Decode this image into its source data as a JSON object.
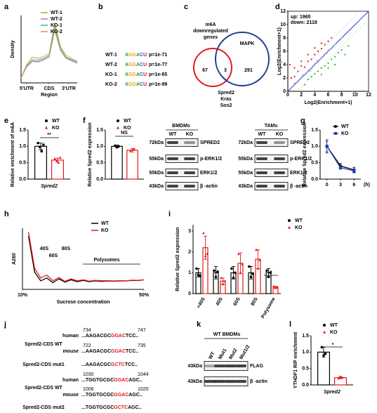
{
  "panel_labels": [
    "a",
    "b",
    "c",
    "d",
    "e",
    "f",
    "g",
    "h",
    "i",
    "j",
    "k",
    "l"
  ],
  "motifs": [
    {
      "label": "WT-1",
      "motif": "AGGACU",
      "p": "p=1e-71"
    },
    {
      "label": "WT-2",
      "motif": "AGGACU",
      "p": "p=1e-77"
    },
    {
      "label": "KO-1",
      "motif": "AGGACU",
      "p": "p=1e-65"
    },
    {
      "label": "KO-2",
      "motif": "AGGACU",
      "p": "p=1e-99"
    }
  ],
  "venn": {
    "left_title": [
      "m6A",
      "downregulated",
      "genes"
    ],
    "right_title": "MAPK",
    "left_only": "67",
    "overlap": "3",
    "right_only": "291",
    "overlap_genes": [
      "Spred2",
      "Kras",
      "Sos2"
    ]
  },
  "blots": [
    {
      "title": "BMDMs",
      "lanes": [
        "WT",
        "KO"
      ],
      "markers": [
        "72kDa",
        "55kDa",
        "55kDa",
        "43kDa"
      ],
      "proteins": [
        "SPRED2",
        "p-ERK1/2",
        "ERK1/2",
        "β -actin"
      ]
    },
    {
      "title": "TAMs",
      "lanes": [
        "WT",
        "KO"
      ],
      "markers": [
        "72kDa",
        "55kDa",
        "55kDa",
        "43kDa"
      ],
      "proteins": [
        "SPRED2",
        "p-ERK1/2",
        "ERK1/2",
        "β -actin"
      ]
    },
    {
      "title": "WT BMDMs",
      "lanes": [
        "WT",
        "Mut1",
        "Mut2",
        "Mut1/2"
      ],
      "markers": [
        "43kDa",
        "43kDa"
      ],
      "proteins": [
        "FLAG",
        "β -actin"
      ]
    }
  ],
  "sequences": [
    {
      "species": "human",
      "pos": [
        "734",
        "747"
      ],
      "seq": [
        "...AAGACGC",
        "GGAC",
        "TCC.."
      ]
    },
    {
      "name": "Spred2-CDS WT",
      "species": "mouse",
      "pos": [
        "722",
        "735"
      ],
      "seq": [
        "...AAGACGC",
        "GGAC",
        "TCC.."
      ]
    },
    {
      "name": "Spred2-CDS mut1",
      "seq": [
        "...AAGACGC",
        "GCTC",
        "TCC.."
      ]
    },
    {
      "species": "human",
      "pos": [
        "1030",
        "1044"
      ],
      "seq": [
        "...TGGTGCGC",
        "GGAC",
        "AGC.."
      ]
    },
    {
      "name": "Spred2-CDS WT",
      "species": "mouse",
      "pos": [
        "1006",
        "1020"
      ],
      "seq": [
        "...TGGTGCGC",
        "GGAC",
        "AGC.."
      ]
    },
    {
      "name": "Spred2-CDS mut2",
      "seq": [
        "...TGGTGCGC",
        "GCTC",
        "AGC.."
      ]
    }
  ],
  "chart_data": [
    {
      "type": "line",
      "ylabel": "Density",
      "xlabel": "Region",
      "x": [
        0,
        1,
        2,
        3,
        4,
        5,
        6,
        7,
        8,
        9,
        10
      ],
      "xlim": [
        0,
        10
      ],
      "xticks": [
        {
          "value": 1,
          "label": "5'UTR"
        },
        {
          "value": 5,
          "label": "CDS"
        },
        {
          "value": 8.5,
          "label": "3'UTR"
        }
      ],
      "ylim": [
        0,
        1.1
      ],
      "series": [
        {
          "name": "WT-1",
          "color": "#7cc242",
          "values": [
            0.08,
            0.3,
            0.42,
            0.4,
            0.43,
            0.48,
            0.98,
            0.6,
            0.45,
            0.4,
            0.36
          ]
        },
        {
          "name": "WT-2",
          "color": "#b46fd6",
          "values": [
            0.08,
            0.28,
            0.38,
            0.37,
            0.4,
            0.45,
            0.92,
            0.57,
            0.42,
            0.38,
            0.34
          ]
        },
        {
          "name": "KO-1",
          "color": "#2fb7a7",
          "values": [
            0.08,
            0.26,
            0.35,
            0.34,
            0.37,
            0.42,
            0.86,
            0.53,
            0.4,
            0.36,
            0.32
          ]
        },
        {
          "name": "KO-2",
          "color": "#f08c3a",
          "values": [
            0.08,
            0.27,
            0.36,
            0.35,
            0.39,
            0.44,
            0.9,
            0.55,
            0.41,
            0.37,
            0.33
          ]
        }
      ]
    },
    {
      "type": "scatter",
      "ylabel": "Log2(Enrichment+1)",
      "xlabel": "Log2(Enrichment+1)",
      "xlim": [
        0,
        12
      ],
      "ylim": [
        0,
        12
      ],
      "xticks": [
        0,
        2,
        4,
        6,
        8,
        10,
        12
      ],
      "yticks": [
        0,
        2,
        4,
        6,
        8,
        10,
        12
      ],
      "annotations": [
        {
          "text": "up: 1965",
          "color": "#e31a1c"
        },
        {
          "text": "down: 2118",
          "color": "#33b433"
        }
      ],
      "series": [
        {
          "color": "#aaaaaa",
          "x": [
            1,
            1.5,
            2,
            2.5,
            3,
            3.5,
            4,
            4.5,
            5,
            5.5,
            6,
            6.5,
            7,
            8,
            2.2,
            3.3,
            4.4
          ],
          "y": [
            1.2,
            1.4,
            2.1,
            2.4,
            3.1,
            3.4,
            4.1,
            4.4,
            5,
            5.6,
            6.1,
            6.4,
            7,
            8,
            2.5,
            3,
            4.6
          ]
        },
        {
          "color": "#e31a1c",
          "x": [
            0.5,
            1,
            1.5,
            2,
            2.5,
            3,
            3.5,
            4,
            4.5,
            5,
            5.5,
            6,
            6.5,
            3,
            2,
            1,
            0.3,
            4,
            5
          ],
          "y": [
            2,
            3.5,
            3,
            3.8,
            3.6,
            4.5,
            4.8,
            5.5,
            6,
            6.4,
            7,
            7.5,
            8,
            5.5,
            4.5,
            2.2,
            4,
            6.5,
            7.2
          ]
        },
        {
          "color": "#33b433",
          "x": [
            2.5,
            3,
            3.5,
            4,
            4.5,
            5,
            5.5,
            6,
            6.5,
            7,
            7.5,
            8,
            5,
            6,
            7,
            8.5,
            9
          ],
          "y": [
            1,
            1.8,
            2.2,
            2.6,
            3,
            3.5,
            3.8,
            4.2,
            4.8,
            5.2,
            5.8,
            6.2,
            2.5,
            3.5,
            4,
            5.5,
            6.8
          ]
        }
      ]
    },
    {
      "type": "bar",
      "ylabel": "Relative enrichment of m6A",
      "categories": [
        "Spred2"
      ],
      "ylim": [
        0,
        1.5
      ],
      "yticks": [
        {
          "value": 0,
          "label": "0.0"
        },
        {
          "value": 0.5,
          "label": "0.5"
        },
        {
          "value": 1,
          "label": "1.0"
        },
        {
          "value": 1.5,
          "label": "1.5"
        }
      ],
      "annotations": [
        "**"
      ],
      "series": [
        {
          "name": "WT",
          "color": "#000000",
          "marker": "circle",
          "values": [
            1.0
          ],
          "errors": [
            0.1
          ],
          "points": [
            [
              1.1,
              0.98,
              0.85,
              1.05
            ]
          ]
        },
        {
          "name": "KO",
          "color": "#e31a1c",
          "marker": "triangle",
          "values": [
            0.58
          ],
          "errors": [
            0.06
          ],
          "points": [
            [
              0.62,
              0.55,
              0.5,
              0.65
            ]
          ]
        }
      ]
    },
    {
      "type": "bar",
      "ylabel": "Relative Spred2 expression",
      "ylim": [
        0,
        1.5
      ],
      "yticks": [
        {
          "value": 0,
          "label": "0.0"
        },
        {
          "value": 0.5,
          "label": "0.5"
        },
        {
          "value": 1,
          "label": "1.0"
        },
        {
          "value": 1.5,
          "label": "1.5"
        }
      ],
      "annotations": [
        "NS"
      ],
      "series": [
        {
          "name": "WT",
          "color": "#000000",
          "marker": "circle",
          "values": [
            1.0
          ],
          "errors": [
            0.04
          ],
          "points": [
            [
              1.02,
              0.97,
              1.0
            ]
          ]
        },
        {
          "name": "KO",
          "color": "#e31a1c",
          "marker": "triangle",
          "values": [
            0.88
          ],
          "errors": [
            0.05
          ],
          "points": [
            [
              0.85,
              0.9,
              0.92
            ]
          ]
        }
      ]
    },
    {
      "type": "line",
      "ylabel": "Relative Spred2 expression",
      "xlabel": "(h)",
      "x": [
        0,
        3,
        6
      ],
      "xlim": [
        -1.5,
        7.5
      ],
      "xticks": [
        0,
        3,
        6
      ],
      "ylim": [
        0,
        1.5
      ],
      "yticks": [
        {
          "value": 0,
          "label": "0.0"
        },
        {
          "value": 0.5,
          "label": "0.5"
        },
        {
          "value": 1,
          "label": "1.0"
        },
        {
          "value": 1.5,
          "label": "1.5"
        }
      ],
      "series": [
        {
          "name": "WT",
          "color": "#000000",
          "marker": "circle",
          "values": [
            1.0,
            0.4,
            0.28
          ],
          "errors": [
            0.2,
            0.08,
            0.08
          ]
        },
        {
          "name": "KO",
          "color": "#1f3fbf",
          "marker": "square",
          "values": [
            1.0,
            0.35,
            0.25
          ],
          "errors": [
            0.15,
            0.05,
            0.06
          ]
        }
      ]
    },
    {
      "type": "line",
      "ylabel": "A260",
      "xlabel": "Sucrose concentration",
      "x": [
        12,
        14,
        16,
        18,
        20,
        22,
        24,
        26,
        28,
        30,
        32,
        34,
        36,
        38,
        40,
        42,
        44,
        46,
        48,
        50
      ],
      "xlim": [
        10,
        50
      ],
      "xticks": [
        {
          "value": 10,
          "label": "10%"
        },
        {
          "value": 50,
          "label": "50%"
        }
      ],
      "ylim": [
        0,
        3.2
      ],
      "annotations": [
        "40S",
        "60S",
        "80S",
        "Polysomes"
      ],
      "series": [
        {
          "name": "WT",
          "color": "#000000",
          "values": [
            2.8,
            0.9,
            0.45,
            0.6,
            0.35,
            0.55,
            0.38,
            0.5,
            0.4,
            0.47,
            0.4,
            0.45,
            0.42,
            0.44,
            0.43,
            0.45,
            0.44,
            0.47,
            0.46,
            0.5
          ]
        },
        {
          "name": "KO",
          "color": "#e31a1c",
          "values": [
            3.0,
            1.1,
            0.6,
            0.75,
            0.45,
            0.62,
            0.42,
            0.55,
            0.45,
            0.5,
            0.43,
            0.47,
            0.45,
            0.46,
            0.44,
            0.46,
            0.45,
            0.48,
            0.47,
            0.5
          ]
        }
      ]
    },
    {
      "type": "bar",
      "ylabel": "Relative Spred2 expression",
      "categories": [
        "<40S",
        "40S",
        "60S",
        "80S",
        "Polysome"
      ],
      "ylim": [
        0,
        3.3
      ],
      "yticks": [
        0,
        1,
        2,
        3
      ],
      "annotations": [
        "*"
      ],
      "series": [
        {
          "name": "WT",
          "color": "#000000",
          "marker": "circle",
          "values": [
            1.0,
            1.0,
            1.0,
            1.0,
            1.0
          ],
          "errors": [
            0.2,
            0.3,
            0.3,
            0.3,
            0.2
          ],
          "points": [
            [
              1.2,
              0.9,
              0.85
            ],
            [
              1.1,
              0.8,
              1.05
            ],
            [
              1.2,
              0.75,
              1.0
            ],
            [
              1.3,
              0.8,
              0.95
            ],
            [
              1.1,
              0.8,
              1.0
            ]
          ]
        },
        {
          "name": "KO",
          "color": "#e31a1c",
          "marker": "triangle",
          "values": [
            2.2,
            0.6,
            1.45,
            1.65,
            0.3
          ],
          "errors": [
            0.55,
            0.15,
            0.5,
            0.45,
            0.05
          ],
          "points": [
            [
              2.9,
              1.8,
              1.9
            ],
            [
              0.75,
              0.45,
              0.6
            ],
            [
              1.9,
              1.0,
              1.4
            ],
            [
              2.1,
              1.2,
              1.6
            ],
            [
              0.35,
              0.27,
              0.3
            ]
          ]
        }
      ]
    },
    {
      "type": "bar",
      "ylabel": "YTHDF1 RIP enrichment",
      "categories": [
        "Spred2"
      ],
      "ylim": [
        0,
        1.5
      ],
      "yticks": [
        {
          "value": 0,
          "label": "0.0"
        },
        {
          "value": 0.5,
          "label": "0.5"
        },
        {
          "value": 1,
          "label": "1.0"
        },
        {
          "value": 1.5,
          "label": "1.5"
        }
      ],
      "annotations": [
        "*"
      ],
      "series": [
        {
          "name": "WT",
          "color": "#000000",
          "marker": "circle",
          "values": [
            1.0
          ],
          "errors": [
            0.15
          ],
          "points": [
            [
              1.15,
              0.9,
              0.95
            ]
          ]
        },
        {
          "name": "KO",
          "color": "#e31a1c",
          "marker": "triangle",
          "values": [
            0.22
          ],
          "errors": [
            0.03
          ],
          "points": [
            [
              0.2,
              0.25,
              0.22
            ]
          ]
        }
      ]
    }
  ]
}
